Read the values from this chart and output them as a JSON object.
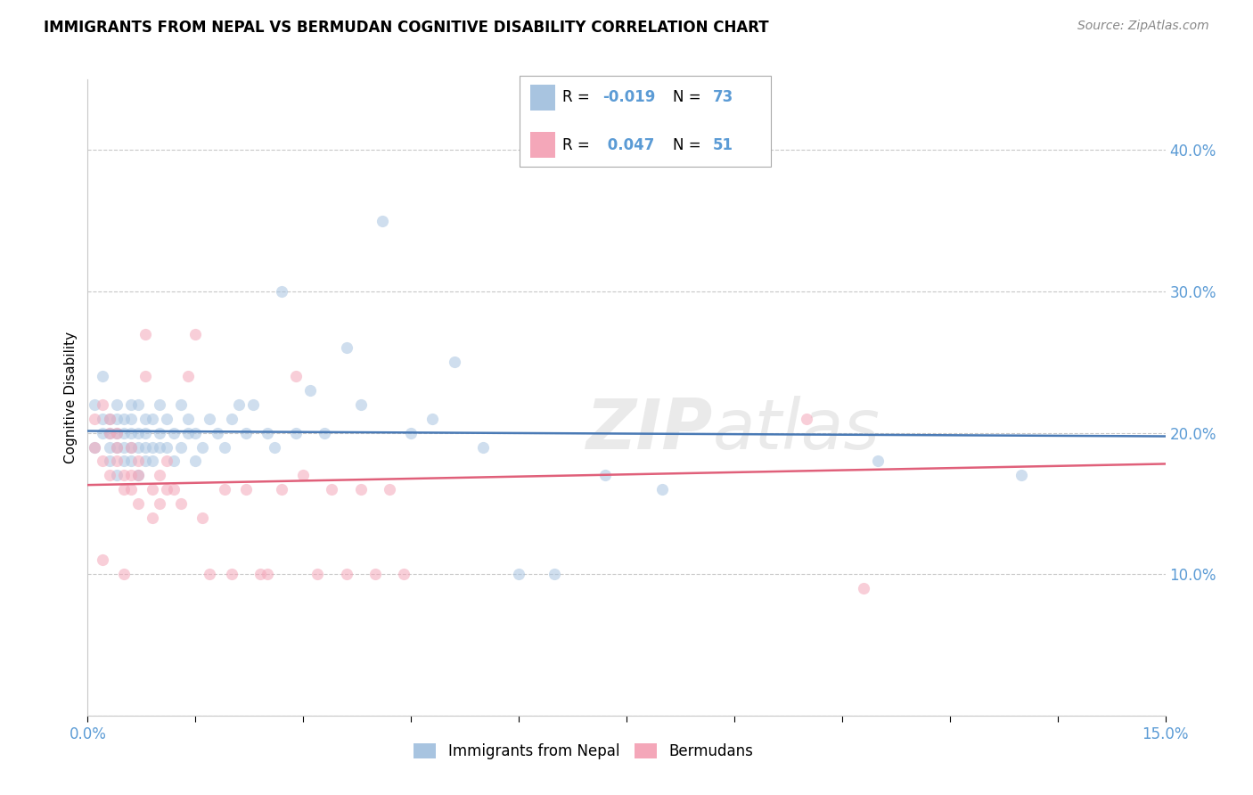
{
  "title": "IMMIGRANTS FROM NEPAL VS BERMUDAN COGNITIVE DISABILITY CORRELATION CHART",
  "source": "Source: ZipAtlas.com",
  "ylabel": "Cognitive Disability",
  "xlim": [
    0.0,
    0.15
  ],
  "ylim": [
    0.0,
    0.45
  ],
  "xticks": [
    0.0,
    0.015,
    0.03,
    0.045,
    0.06,
    0.075,
    0.09,
    0.105,
    0.12,
    0.135,
    0.15
  ],
  "xticklabels_show": {
    "0.0": "0.0%",
    "0.15": "15.0%"
  },
  "yticks": [
    0.0,
    0.1,
    0.2,
    0.3,
    0.4
  ],
  "yticklabels": [
    "",
    "10.0%",
    "20.0%",
    "30.0%",
    "40.0%"
  ],
  "grid_color": "#c8c8c8",
  "background_color": "#ffffff",
  "tick_color": "#5b9bd5",
  "nepal_color": "#a8c4e0",
  "bermuda_color": "#f4a7b9",
  "nepal_line_color": "#4a7ab5",
  "bermuda_line_color": "#e0607a",
  "marker_size": 90,
  "marker_alpha": 0.55,
  "nepal_scatter_x": [
    0.001,
    0.001,
    0.002,
    0.002,
    0.002,
    0.003,
    0.003,
    0.003,
    0.003,
    0.004,
    0.004,
    0.004,
    0.004,
    0.004,
    0.005,
    0.005,
    0.005,
    0.005,
    0.006,
    0.006,
    0.006,
    0.006,
    0.006,
    0.007,
    0.007,
    0.007,
    0.007,
    0.008,
    0.008,
    0.008,
    0.008,
    0.009,
    0.009,
    0.009,
    0.01,
    0.01,
    0.01,
    0.011,
    0.011,
    0.012,
    0.012,
    0.013,
    0.013,
    0.014,
    0.014,
    0.015,
    0.015,
    0.016,
    0.017,
    0.018,
    0.019,
    0.02,
    0.021,
    0.022,
    0.023,
    0.025,
    0.026,
    0.027,
    0.029,
    0.031,
    0.033,
    0.036,
    0.038,
    0.041,
    0.045,
    0.048,
    0.051,
    0.055,
    0.06,
    0.065,
    0.072,
    0.08,
    0.11,
    0.13
  ],
  "nepal_scatter_y": [
    0.19,
    0.22,
    0.2,
    0.21,
    0.24,
    0.18,
    0.19,
    0.21,
    0.2,
    0.17,
    0.19,
    0.2,
    0.22,
    0.21,
    0.18,
    0.19,
    0.2,
    0.21,
    0.18,
    0.19,
    0.2,
    0.21,
    0.22,
    0.17,
    0.19,
    0.2,
    0.22,
    0.18,
    0.19,
    0.2,
    0.21,
    0.18,
    0.19,
    0.21,
    0.19,
    0.2,
    0.22,
    0.19,
    0.21,
    0.18,
    0.2,
    0.19,
    0.22,
    0.2,
    0.21,
    0.18,
    0.2,
    0.19,
    0.21,
    0.2,
    0.19,
    0.21,
    0.22,
    0.2,
    0.22,
    0.2,
    0.19,
    0.3,
    0.2,
    0.23,
    0.2,
    0.26,
    0.22,
    0.35,
    0.2,
    0.21,
    0.25,
    0.19,
    0.1,
    0.1,
    0.17,
    0.16,
    0.18,
    0.17
  ],
  "bermuda_scatter_x": [
    0.001,
    0.001,
    0.002,
    0.002,
    0.002,
    0.003,
    0.003,
    0.003,
    0.004,
    0.004,
    0.004,
    0.005,
    0.005,
    0.005,
    0.006,
    0.006,
    0.006,
    0.007,
    0.007,
    0.007,
    0.008,
    0.008,
    0.009,
    0.009,
    0.01,
    0.01,
    0.011,
    0.011,
    0.012,
    0.013,
    0.014,
    0.015,
    0.016,
    0.017,
    0.019,
    0.02,
    0.022,
    0.024,
    0.025,
    0.027,
    0.029,
    0.03,
    0.032,
    0.034,
    0.036,
    0.038,
    0.04,
    0.042,
    0.044,
    0.1,
    0.108
  ],
  "bermuda_scatter_y": [
    0.19,
    0.21,
    0.11,
    0.18,
    0.22,
    0.17,
    0.2,
    0.21,
    0.18,
    0.19,
    0.2,
    0.1,
    0.16,
    0.17,
    0.16,
    0.17,
    0.19,
    0.15,
    0.17,
    0.18,
    0.27,
    0.24,
    0.14,
    0.16,
    0.15,
    0.17,
    0.16,
    0.18,
    0.16,
    0.15,
    0.24,
    0.27,
    0.14,
    0.1,
    0.16,
    0.1,
    0.16,
    0.1,
    0.1,
    0.16,
    0.24,
    0.17,
    0.1,
    0.16,
    0.1,
    0.16,
    0.1,
    0.16,
    0.1,
    0.21,
    0.09
  ]
}
